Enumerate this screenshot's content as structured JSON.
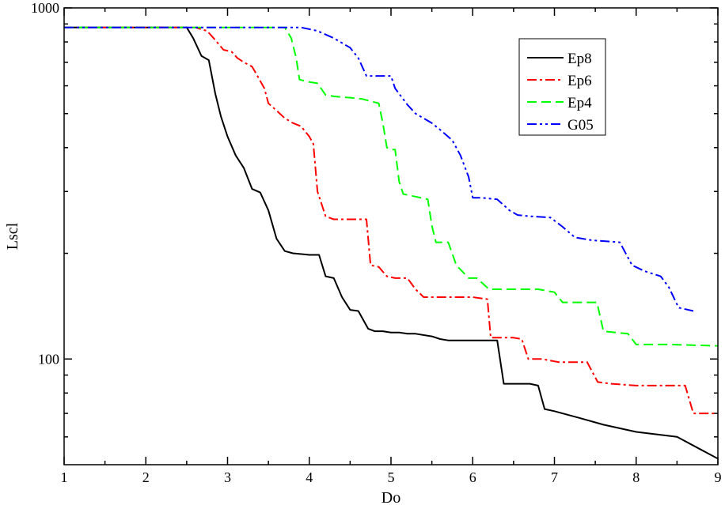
{
  "chart_data": {
    "type": "line",
    "xlabel": "Do",
    "ylabel": "Lscl",
    "xlim": [
      1,
      9
    ],
    "ylim": [
      50,
      1000
    ],
    "yscale": "log",
    "grid": false,
    "legend_position": "top-right",
    "x_ticks": [
      1,
      2,
      3,
      4,
      5,
      6,
      7,
      8,
      9
    ],
    "x_tick_labels": [
      "1",
      "2",
      "3",
      "4",
      "5",
      "6",
      "7",
      "8",
      "9"
    ],
    "y_major_ticks": [
      100,
      1000
    ],
    "y_major_tick_labels": [
      "100",
      "1000"
    ],
    "y_minor_ticks": [
      60,
      70,
      80,
      90,
      200,
      300,
      400,
      500,
      600,
      700,
      800,
      900
    ],
    "series": [
      {
        "name": "Ep8",
        "color": "#000000",
        "dash": "solid",
        "points": [
          [
            1.0,
            880
          ],
          [
            2.5,
            880
          ],
          [
            2.58,
            820
          ],
          [
            2.68,
            730
          ],
          [
            2.77,
            710
          ],
          [
            2.85,
            570
          ],
          [
            2.92,
            490
          ],
          [
            3.0,
            430
          ],
          [
            3.1,
            380
          ],
          [
            3.2,
            350
          ],
          [
            3.3,
            305
          ],
          [
            3.4,
            298
          ],
          [
            3.5,
            265
          ],
          [
            3.6,
            220
          ],
          [
            3.7,
            203
          ],
          [
            3.8,
            200
          ],
          [
            4.0,
            198
          ],
          [
            4.12,
            198
          ],
          [
            4.2,
            172
          ],
          [
            4.3,
            170
          ],
          [
            4.4,
            150
          ],
          [
            4.5,
            138
          ],
          [
            4.6,
            137
          ],
          [
            4.72,
            122
          ],
          [
            4.8,
            120
          ],
          [
            4.9,
            120
          ],
          [
            5.0,
            119
          ],
          [
            5.1,
            119
          ],
          [
            5.2,
            118
          ],
          [
            5.3,
            118
          ],
          [
            5.5,
            116
          ],
          [
            5.6,
            114
          ],
          [
            5.7,
            113
          ],
          [
            6.0,
            113
          ],
          [
            6.3,
            113
          ],
          [
            6.38,
            85
          ],
          [
            6.7,
            85
          ],
          [
            6.8,
            84
          ],
          [
            6.88,
            72
          ],
          [
            7.0,
            71
          ],
          [
            7.3,
            68
          ],
          [
            7.6,
            65
          ],
          [
            8.0,
            62
          ],
          [
            8.5,
            60
          ],
          [
            9.0,
            52
          ]
        ]
      },
      {
        "name": "Ep6",
        "color": "#ff0000",
        "dash": "dashdot",
        "points": [
          [
            1.0,
            880
          ],
          [
            2.6,
            880
          ],
          [
            2.75,
            860
          ],
          [
            2.85,
            810
          ],
          [
            2.95,
            760
          ],
          [
            3.05,
            750
          ],
          [
            3.12,
            720
          ],
          [
            3.2,
            700
          ],
          [
            3.3,
            680
          ],
          [
            3.35,
            650
          ],
          [
            3.45,
            590
          ],
          [
            3.5,
            535
          ],
          [
            3.6,
            510
          ],
          [
            3.7,
            485
          ],
          [
            3.8,
            470
          ],
          [
            3.9,
            460
          ],
          [
            4.0,
            430
          ],
          [
            4.05,
            410
          ],
          [
            4.1,
            300
          ],
          [
            4.2,
            255
          ],
          [
            4.3,
            250
          ],
          [
            4.5,
            250
          ],
          [
            4.7,
            250
          ],
          [
            4.75,
            185
          ],
          [
            4.85,
            183
          ],
          [
            4.95,
            172
          ],
          [
            5.05,
            170
          ],
          [
            5.2,
            170
          ],
          [
            5.3,
            158
          ],
          [
            5.4,
            150
          ],
          [
            5.6,
            150
          ],
          [
            6.0,
            150
          ],
          [
            6.18,
            148
          ],
          [
            6.22,
            115
          ],
          [
            6.5,
            115
          ],
          [
            6.6,
            114
          ],
          [
            6.68,
            100
          ],
          [
            6.85,
            100
          ],
          [
            7.05,
            98
          ],
          [
            7.4,
            98
          ],
          [
            7.53,
            86
          ],
          [
            7.7,
            85
          ],
          [
            8.0,
            84
          ],
          [
            8.6,
            84
          ],
          [
            8.7,
            70
          ],
          [
            9.0,
            70
          ]
        ]
      },
      {
        "name": "Ep4",
        "color": "#00ff00",
        "dash": "dashed",
        "points": [
          [
            1.0,
            880
          ],
          [
            3.7,
            880
          ],
          [
            3.78,
            820
          ],
          [
            3.84,
            720
          ],
          [
            3.88,
            625
          ],
          [
            4.0,
            615
          ],
          [
            4.1,
            610
          ],
          [
            4.2,
            565
          ],
          [
            4.3,
            560
          ],
          [
            4.5,
            555
          ],
          [
            4.65,
            550
          ],
          [
            4.85,
            535
          ],
          [
            4.9,
            470
          ],
          [
            4.95,
            400
          ],
          [
            5.0,
            395
          ],
          [
            5.05,
            395
          ],
          [
            5.1,
            320
          ],
          [
            5.15,
            295
          ],
          [
            5.3,
            290
          ],
          [
            5.45,
            285
          ],
          [
            5.5,
            240
          ],
          [
            5.55,
            215
          ],
          [
            5.7,
            215
          ],
          [
            5.8,
            185
          ],
          [
            5.95,
            170
          ],
          [
            6.05,
            170
          ],
          [
            6.2,
            158
          ],
          [
            6.5,
            158
          ],
          [
            6.8,
            158
          ],
          [
            7.0,
            155
          ],
          [
            7.1,
            145
          ],
          [
            7.4,
            145
          ],
          [
            7.52,
            145
          ],
          [
            7.6,
            120
          ],
          [
            7.75,
            119
          ],
          [
            7.9,
            118
          ],
          [
            8.0,
            110
          ],
          [
            8.4,
            110
          ],
          [
            9.0,
            109
          ]
        ]
      },
      {
        "name": "G05",
        "color": "#0000ff",
        "dash": "dashdotdot",
        "points": [
          [
            1.0,
            880
          ],
          [
            3.9,
            880
          ],
          [
            4.1,
            860
          ],
          [
            4.3,
            820
          ],
          [
            4.5,
            770
          ],
          [
            4.6,
            720
          ],
          [
            4.7,
            640
          ],
          [
            4.8,
            640
          ],
          [
            5.0,
            640
          ],
          [
            5.05,
            590
          ],
          [
            5.2,
            530
          ],
          [
            5.3,
            500
          ],
          [
            5.5,
            470
          ],
          [
            5.6,
            450
          ],
          [
            5.75,
            420
          ],
          [
            5.85,
            380
          ],
          [
            5.95,
            330
          ],
          [
            6.0,
            288
          ],
          [
            6.1,
            288
          ],
          [
            6.3,
            285
          ],
          [
            6.45,
            265
          ],
          [
            6.55,
            257
          ],
          [
            6.7,
            255
          ],
          [
            6.95,
            253
          ],
          [
            7.1,
            238
          ],
          [
            7.25,
            222
          ],
          [
            7.45,
            218
          ],
          [
            7.8,
            215
          ],
          [
            7.95,
            185
          ],
          [
            8.1,
            178
          ],
          [
            8.3,
            172
          ],
          [
            8.4,
            160
          ],
          [
            8.52,
            140
          ],
          [
            8.7,
            137
          ]
        ]
      }
    ]
  }
}
